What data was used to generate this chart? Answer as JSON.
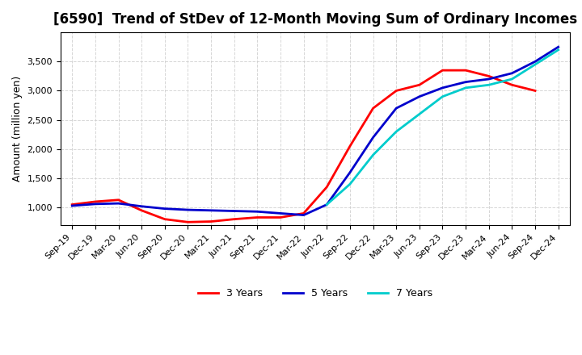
{
  "title": "[6590]  Trend of StDev of 12-Month Moving Sum of Ordinary Incomes",
  "ylabel": "Amount (million yen)",
  "background_color": "#ffffff",
  "grid_color": "#cccccc",
  "ylim": [
    700,
    4000
  ],
  "yticks": [
    1000,
    1500,
    2000,
    2500,
    3000,
    3500
  ],
  "x_labels": [
    "Sep-19",
    "Dec-19",
    "Mar-20",
    "Jun-20",
    "Sep-20",
    "Dec-20",
    "Mar-21",
    "Jun-21",
    "Sep-21",
    "Dec-21",
    "Mar-22",
    "Jun-22",
    "Sep-22",
    "Dec-22",
    "Mar-23",
    "Jun-23",
    "Sep-23",
    "Dec-23",
    "Mar-24",
    "Jun-24",
    "Sep-24",
    "Dec-24"
  ],
  "series": {
    "3 Years": {
      "color": "#ff0000",
      "data": [
        1050,
        1100,
        1130,
        950,
        800,
        750,
        760,
        800,
        830,
        830,
        900,
        1350,
        2050,
        2700,
        3000,
        3100,
        3350,
        3350,
        3250,
        3100,
        3000,
        null
      ]
    },
    "5 Years": {
      "color": "#0000cc",
      "data": [
        1030,
        1060,
        1070,
        1020,
        980,
        960,
        950,
        940,
        930,
        900,
        870,
        1050,
        1600,
        2200,
        2700,
        2900,
        3050,
        3150,
        3200,
        3300,
        3500,
        3750
      ]
    },
    "7 Years": {
      "color": "#00cccc",
      "data": [
        null,
        null,
        null,
        null,
        null,
        null,
        null,
        null,
        null,
        null,
        null,
        1050,
        1400,
        1900,
        2300,
        2600,
        2900,
        3050,
        3100,
        3200,
        3450,
        3700
      ]
    },
    "10 Years": {
      "color": "#008000",
      "data": [
        null,
        null,
        null,
        null,
        null,
        null,
        null,
        null,
        null,
        null,
        null,
        null,
        null,
        null,
        null,
        null,
        null,
        null,
        null,
        null,
        null,
        null
      ]
    }
  }
}
